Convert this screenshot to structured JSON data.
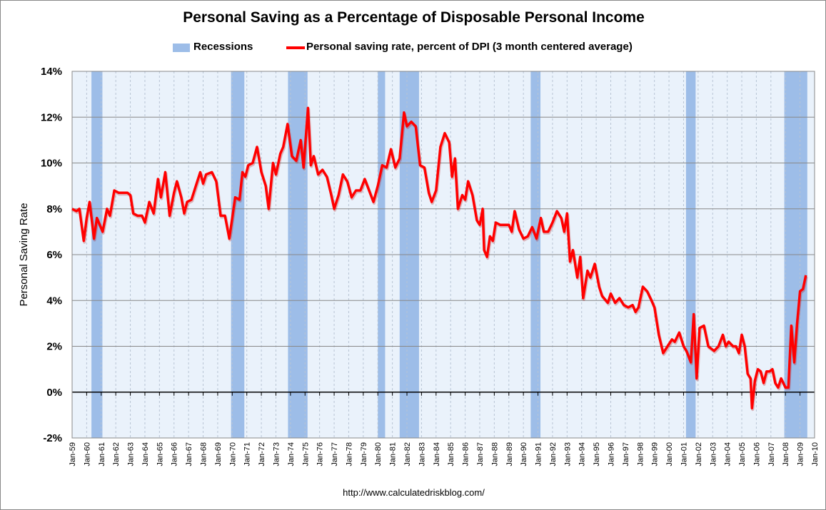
{
  "chart_data": {
    "type": "line",
    "title": "Personal Saving as a Percentage of Disposable Personal Income",
    "ylabel": "Personal Saving Rate",
    "xlabel": "",
    "source": "http://www.calculatedriskblog.com/",
    "ylim": [
      -2,
      14
    ],
    "yticks": [
      "-2%",
      "0%",
      "2%",
      "4%",
      "6%",
      "8%",
      "10%",
      "12%",
      "14%"
    ],
    "xlim": [
      1959,
      2010
    ],
    "xticks": [
      "Jan-59",
      "Jan-60",
      "Jan-61",
      "Jan-62",
      "Jan-63",
      "Jan-64",
      "Jan-65",
      "Jan-66",
      "Jan-67",
      "Jan-68",
      "Jan-69",
      "Jan-70",
      "Jan-71",
      "Jan-72",
      "Jan-73",
      "Jan-74",
      "Jan-75",
      "Jan-76",
      "Jan-77",
      "Jan-78",
      "Jan-79",
      "Jan-80",
      "Jan-81",
      "Jan-82",
      "Jan-83",
      "Jan-84",
      "Jan-85",
      "Jan-86",
      "Jan-87",
      "Jan-88",
      "Jan-89",
      "Jan-90",
      "Jan-91",
      "Jan-92",
      "Jan-93",
      "Jan-94",
      "Jan-95",
      "Jan-96",
      "Jan-97",
      "Jan-98",
      "Jan-99",
      "Jan-00",
      "Jan-01",
      "Jan-02",
      "Jan-03",
      "Jan-04",
      "Jan-05",
      "Jan-06",
      "Jan-07",
      "Jan-08",
      "Jan-09",
      "Jan-10"
    ],
    "grid": true,
    "legend": "top",
    "colors": {
      "recession": "#9dbde8",
      "line": "#ff0000",
      "plot_bg": "#eaf2fb"
    },
    "recessions": {
      "name": "Recessions",
      "periods": [
        [
          1960.33,
          1961.08
        ],
        [
          1969.92,
          1970.83
        ],
        [
          1973.83,
          1975.17
        ],
        [
          1980.0,
          1980.5
        ],
        [
          1981.5,
          1982.83
        ],
        [
          1990.5,
          1991.17
        ],
        [
          2001.17,
          2001.83
        ],
        [
          2007.92,
          2009.5
        ]
      ]
    },
    "series": [
      {
        "name": "Personal saving rate, percent of DPI (3 month centered average)",
        "x": [
          1959.0,
          1959.3,
          1959.5,
          1959.8,
          1960.0,
          1960.2,
          1960.5,
          1960.7,
          1960.9,
          1961.1,
          1961.4,
          1961.6,
          1961.9,
          1962.2,
          1962.5,
          1962.8,
          1963.0,
          1963.2,
          1963.5,
          1963.8,
          1964.0,
          1964.3,
          1964.6,
          1964.9,
          1965.1,
          1965.4,
          1965.7,
          1966.0,
          1966.2,
          1966.5,
          1966.7,
          1966.9,
          1967.2,
          1967.5,
          1967.8,
          1968.0,
          1968.2,
          1968.6,
          1968.9,
          1969.2,
          1969.5,
          1969.8,
          1970.2,
          1970.5,
          1970.7,
          1970.9,
          1971.1,
          1971.4,
          1971.7,
          1972.0,
          1972.3,
          1972.5,
          1972.8,
          1973.0,
          1973.3,
          1973.5,
          1973.8,
          1974.1,
          1974.4,
          1974.7,
          1974.9,
          1975.2,
          1975.4,
          1975.6,
          1975.9,
          1976.2,
          1976.5,
          1976.8,
          1977.0,
          1977.3,
          1977.6,
          1977.9,
          1978.2,
          1978.5,
          1978.8,
          1979.1,
          1979.4,
          1979.7,
          1980.0,
          1980.3,
          1980.6,
          1980.9,
          1981.2,
          1981.5,
          1981.8,
          1982.0,
          1982.3,
          1982.6,
          1982.9,
          1983.2,
          1983.5,
          1983.7,
          1984.0,
          1984.3,
          1984.6,
          1984.9,
          1985.1,
          1985.3,
          1985.5,
          1985.8,
          1986.0,
          1986.2,
          1986.5,
          1986.8,
          1987.0,
          1987.2,
          1987.3,
          1987.5,
          1987.7,
          1987.9,
          1988.1,
          1988.4,
          1988.7,
          1989.0,
          1989.2,
          1989.4,
          1989.7,
          1990.0,
          1990.3,
          1990.6,
          1990.9,
          1991.2,
          1991.4,
          1991.7,
          1992.0,
          1992.3,
          1992.6,
          1992.8,
          1993.0,
          1993.2,
          1993.4,
          1993.7,
          1993.9,
          1994.1,
          1994.4,
          1994.6,
          1994.9,
          1995.2,
          1995.4,
          1995.8,
          1996.0,
          1996.3,
          1996.6,
          1996.9,
          1997.2,
          1997.5,
          1997.7,
          1997.9,
          1998.2,
          1998.5,
          1998.8,
          1999.0,
          1999.3,
          1999.6,
          1999.9,
          2000.2,
          2000.4,
          2000.7,
          2001.0,
          2001.2,
          2001.5,
          2001.7,
          2001.9,
          2002.1,
          2002.4,
          2002.7,
          2002.9,
          2003.1,
          2003.4,
          2003.7,
          2003.9,
          2004.1,
          2004.4,
          2004.6,
          2004.8,
          2005.0,
          2005.2,
          2005.4,
          2005.6,
          2005.7,
          2005.9,
          2006.1,
          2006.3,
          2006.5,
          2006.7,
          2006.9,
          2007.1,
          2007.3,
          2007.5,
          2007.7,
          2008.0,
          2008.2,
          2008.4,
          2008.6,
          2008.8,
          2009.0,
          2009.2,
          2009.4
        ],
        "values": [
          8.0,
          7.9,
          8.0,
          6.6,
          7.6,
          8.3,
          6.7,
          7.6,
          7.3,
          7.0,
          8.0,
          7.7,
          8.8,
          8.7,
          8.7,
          8.7,
          8.6,
          7.8,
          7.7,
          7.7,
          7.4,
          8.3,
          7.8,
          9.3,
          8.5,
          9.6,
          7.7,
          8.7,
          9.2,
          8.5,
          7.8,
          8.3,
          8.4,
          9.0,
          9.6,
          9.1,
          9.5,
          9.6,
          9.2,
          7.7,
          7.7,
          6.7,
          8.5,
          8.4,
          9.6,
          9.4,
          9.9,
          10.0,
          10.7,
          9.6,
          9.0,
          8.0,
          10.0,
          9.5,
          10.4,
          10.7,
          11.7,
          10.3,
          10.1,
          11.0,
          9.8,
          12.4,
          9.9,
          10.3,
          9.5,
          9.7,
          9.4,
          8.6,
          8.0,
          8.6,
          9.5,
          9.2,
          8.5,
          8.8,
          8.8,
          9.3,
          8.8,
          8.3,
          9.0,
          9.9,
          9.8,
          10.6,
          9.8,
          10.2,
          12.2,
          11.6,
          11.8,
          11.6,
          9.9,
          9.8,
          8.7,
          8.3,
          8.8,
          10.7,
          11.3,
          10.9,
          9.4,
          10.2,
          8.0,
          8.6,
          8.4,
          9.2,
          8.6,
          7.5,
          7.3,
          8.0,
          6.2,
          5.9,
          6.8,
          6.6,
          7.4,
          7.3,
          7.3,
          7.3,
          7.0,
          7.9,
          7.1,
          6.7,
          6.8,
          7.2,
          6.7,
          7.6,
          7.0,
          7.0,
          7.4,
          7.9,
          7.6,
          7.0,
          7.8,
          5.7,
          6.2,
          5.0,
          5.9,
          4.1,
          5.3,
          5.0,
          5.6,
          4.6,
          4.2,
          3.9,
          4.3,
          3.9,
          4.1,
          3.8,
          3.7,
          3.8,
          3.5,
          3.7,
          4.6,
          4.4,
          4.0,
          3.7,
          2.5,
          1.7,
          2.0,
          2.3,
          2.2,
          2.6,
          2.0,
          1.8,
          1.3,
          3.4,
          0.6,
          2.8,
          2.9,
          2.0,
          1.9,
          1.8,
          2.0,
          2.5,
          2.0,
          2.2,
          2.0,
          2.0,
          1.7,
          2.5,
          2.0,
          0.8,
          0.6,
          -0.7,
          0.5,
          1.0,
          0.9,
          0.4,
          0.9,
          0.9,
          1.0,
          0.4,
          0.2,
          0.6,
          0.2,
          0.2,
          2.9,
          1.3,
          3.0,
          4.4,
          4.5,
          5.1
        ]
      }
    ]
  }
}
